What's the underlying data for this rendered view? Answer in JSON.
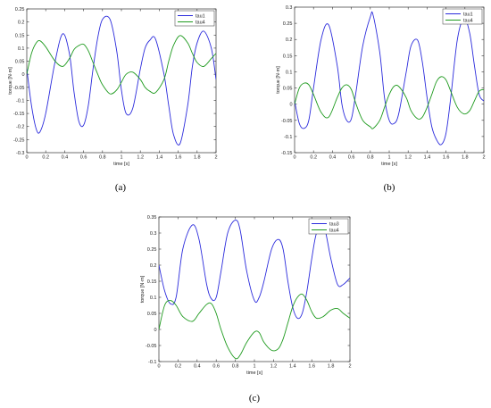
{
  "chart_data": [
    {
      "type": "line",
      "caption": "(a)",
      "xlabel": "time [s]",
      "ylabel": "torque [N·m]",
      "xlim": [
        0,
        2
      ],
      "ylim": [
        -0.3,
        0.25
      ],
      "xticks": [
        "0",
        "0.2",
        "0.4",
        "0.6",
        "0.8",
        "1",
        "1.2",
        "1.4",
        "1.6",
        "1.8",
        "2"
      ],
      "yticks": [
        "0.25",
        "0.2",
        "0.15",
        "0.1",
        "0.05",
        "0",
        "-0.05",
        "-0.1",
        "-0.15",
        "-0.2",
        "-0.25",
        "-0.3"
      ],
      "legend_position": "top-right",
      "x": [
        0,
        0.05,
        0.1,
        0.14,
        0.2,
        0.3,
        0.38,
        0.45,
        0.5,
        0.55,
        0.6,
        0.65,
        0.7,
        0.75,
        0.8,
        0.88,
        0.95,
        1,
        1.05,
        1.12,
        1.2,
        1.25,
        1.3,
        1.36,
        1.45,
        1.5,
        1.55,
        1.62,
        1.7,
        1.75,
        1.8,
        1.87,
        1.95,
        2
      ],
      "series": [
        {
          "name": "tau1",
          "color": "#2b2bdc",
          "values": [
            0.02,
            -0.12,
            -0.21,
            -0.22,
            -0.15,
            0.05,
            0.155,
            0.08,
            -0.07,
            -0.18,
            -0.195,
            -0.12,
            0.02,
            0.14,
            0.21,
            0.21,
            0.09,
            -0.06,
            -0.15,
            -0.13,
            0.02,
            0.1,
            0.13,
            0.135,
            0.0,
            -0.12,
            -0.23,
            -0.265,
            -0.12,
            0.03,
            0.12,
            0.165,
            0.1,
            -0.02
          ]
        },
        {
          "name": "tau4",
          "color": "#1e9a1e",
          "values": [
            0.0,
            0.08,
            0.12,
            0.128,
            0.105,
            0.05,
            0.03,
            0.06,
            0.095,
            0.11,
            0.115,
            0.09,
            0.045,
            0.0,
            -0.04,
            -0.075,
            -0.06,
            -0.03,
            0.0,
            0.008,
            -0.02,
            -0.05,
            -0.065,
            -0.07,
            -0.02,
            0.05,
            0.11,
            0.148,
            0.12,
            0.08,
            0.045,
            0.03,
            0.06,
            0.08
          ]
        }
      ]
    },
    {
      "type": "line",
      "caption": "(b)",
      "xlabel": "time [s]",
      "ylabel": "torque [N·m]",
      "xlim": [
        0,
        2
      ],
      "ylim": [
        -0.15,
        0.3
      ],
      "xticks": [
        "0",
        "0.2",
        "0.4",
        "0.6",
        "0.8",
        "1",
        "1.2",
        "1.4",
        "1.6",
        "1.8",
        "2"
      ],
      "yticks": [
        "0.3",
        "0.25",
        "0.2",
        "0.15",
        "0.1",
        "0.05",
        "0",
        "-0.05",
        "-0.1",
        "-0.15"
      ],
      "legend_position": "top-right",
      "x": [
        0,
        0.05,
        0.1,
        0.15,
        0.2,
        0.28,
        0.36,
        0.45,
        0.5,
        0.55,
        0.6,
        0.65,
        0.72,
        0.8,
        0.83,
        0.9,
        0.95,
        1,
        1.05,
        1.1,
        1.18,
        1.23,
        1.3,
        1.35,
        1.4,
        1.45,
        1.5,
        1.55,
        1.6,
        1.65,
        1.72,
        1.79,
        1.85,
        1.9,
        1.95,
        2
      ],
      "series": [
        {
          "name": "tau1",
          "color": "#2b2bdc",
          "values": [
            0.01,
            -0.06,
            -0.075,
            -0.05,
            0.05,
            0.2,
            0.245,
            0.12,
            0.0,
            -0.05,
            -0.045,
            0.04,
            0.18,
            0.27,
            0.275,
            0.16,
            0.02,
            -0.05,
            -0.06,
            -0.03,
            0.1,
            0.18,
            0.198,
            0.13,
            0.02,
            -0.07,
            -0.11,
            -0.125,
            -0.09,
            0.02,
            0.2,
            0.265,
            0.22,
            0.12,
            0.03,
            0.01
          ]
        },
        {
          "name": "tau4",
          "color": "#1e9a1e",
          "values": [
            0.0,
            0.05,
            0.065,
            0.06,
            0.03,
            -0.025,
            -0.04,
            0.02,
            0.05,
            0.06,
            0.045,
            0.0,
            -0.05,
            -0.07,
            -0.075,
            -0.05,
            -0.01,
            0.03,
            0.055,
            0.055,
            0.02,
            -0.02,
            -0.045,
            -0.04,
            -0.01,
            0.03,
            0.07,
            0.085,
            0.075,
            0.04,
            -0.01,
            -0.03,
            -0.02,
            0.01,
            0.04,
            0.045
          ]
        }
      ]
    },
    {
      "type": "line",
      "caption": "(c)",
      "xlabel": "time [s]",
      "ylabel": "torque [N·m]",
      "xlim": [
        0,
        2
      ],
      "ylim": [
        -0.1,
        0.35
      ],
      "xticks": [
        "0",
        "0.2",
        "0.4",
        "0.6",
        "0.8",
        "1",
        "1.2",
        "1.4",
        "1.6",
        "1.8",
        "2"
      ],
      "yticks": [
        "0.35",
        "0.3",
        "0.25",
        "0.2",
        "0.15",
        "0.1",
        "0.05",
        "0",
        "-0.05",
        "-0.1"
      ],
      "legend_position": "top-right",
      "x": [
        0,
        0.06,
        0.12,
        0.18,
        0.25,
        0.35,
        0.42,
        0.5,
        0.55,
        0.6,
        0.65,
        0.72,
        0.8,
        0.85,
        0.92,
        1,
        1.05,
        1.1,
        1.18,
        1.25,
        1.3,
        1.35,
        1.4,
        1.45,
        1.5,
        1.55,
        1.6,
        1.65,
        1.72,
        1.8,
        1.87,
        1.93,
        2
      ],
      "series": [
        {
          "name": "tau3",
          "color": "#2b2bdc",
          "values": [
            0.2,
            0.12,
            0.08,
            0.1,
            0.25,
            0.325,
            0.28,
            0.14,
            0.095,
            0.1,
            0.18,
            0.3,
            0.34,
            0.31,
            0.18,
            0.09,
            0.1,
            0.15,
            0.25,
            0.28,
            0.25,
            0.15,
            0.07,
            0.035,
            0.05,
            0.12,
            0.22,
            0.3,
            0.33,
            0.22,
            0.14,
            0.14,
            0.16
          ]
        },
        {
          "name": "tau4",
          "color": "#1e9a1e",
          "values": [
            0.0,
            0.075,
            0.09,
            0.075,
            0.04,
            0.025,
            0.05,
            0.078,
            0.08,
            0.05,
            0.0,
            -0.055,
            -0.09,
            -0.08,
            -0.04,
            -0.008,
            -0.01,
            -0.04,
            -0.065,
            -0.06,
            -0.03,
            0.02,
            0.07,
            0.1,
            0.11,
            0.09,
            0.055,
            0.035,
            0.04,
            0.06,
            0.065,
            0.05,
            0.035
          ]
        }
      ]
    }
  ]
}
